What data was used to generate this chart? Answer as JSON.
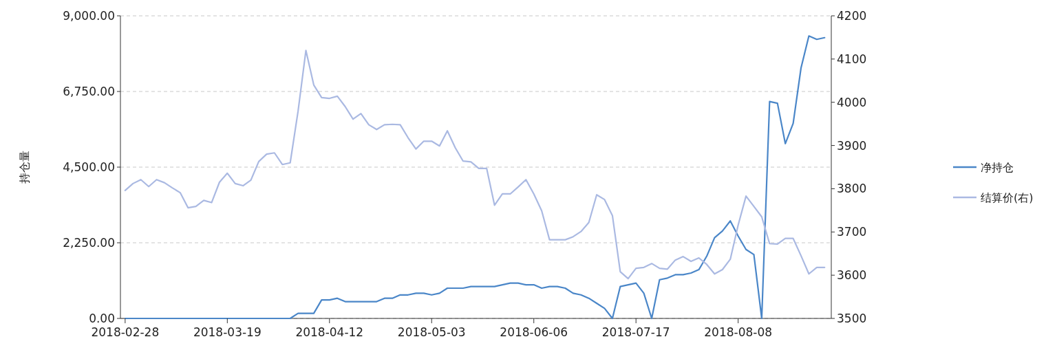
{
  "chart_data": {
    "type": "line",
    "ylabel": "持仓量",
    "categories": [
      "2018-02-28",
      null,
      null,
      null,
      null,
      null,
      null,
      null,
      null,
      null,
      null,
      null,
      null,
      "2018-03-19",
      null,
      null,
      null,
      null,
      null,
      null,
      null,
      null,
      null,
      null,
      null,
      null,
      "2018-04-12",
      null,
      null,
      null,
      null,
      null,
      null,
      null,
      null,
      null,
      null,
      null,
      null,
      "2018-05-03",
      null,
      null,
      null,
      null,
      null,
      null,
      null,
      null,
      null,
      null,
      null,
      null,
      "2018-06-06",
      null,
      null,
      null,
      null,
      null,
      null,
      null,
      null,
      null,
      null,
      null,
      null,
      "2018-07-17",
      null,
      null,
      null,
      null,
      null,
      null,
      null,
      null,
      null,
      null,
      null,
      null,
      "2018-08-08",
      null,
      null,
      null,
      null,
      null,
      null,
      null,
      null,
      null,
      null,
      null
    ],
    "series": [
      {
        "name": "净持仓",
        "color": "#4a86c8",
        "values": [
          0,
          0,
          0,
          0,
          0,
          0,
          0,
          0,
          0,
          0,
          0,
          0,
          0,
          0,
          0,
          0,
          0,
          0,
          0,
          0,
          0,
          0,
          150,
          150,
          150,
          550,
          550,
          600,
          500,
          500,
          500,
          500,
          500,
          600,
          600,
          700,
          700,
          750,
          750,
          700,
          750,
          900,
          900,
          900,
          950,
          950,
          950,
          950,
          1000,
          1050,
          1050,
          1000,
          1000,
          900,
          950,
          950,
          900,
          750,
          700,
          600,
          450,
          300,
          0,
          950,
          1000,
          1050,
          750,
          0,
          1150,
          1200,
          1300,
          1300,
          1350,
          1450,
          1850,
          2400,
          2600,
          2900,
          2450,
          2050,
          1900,
          0,
          6450,
          6400,
          5200,
          5800,
          7450,
          8400,
          8300,
          8350
        ]
      },
      {
        "name": "结算价(右)",
        "color": "#aab9e2",
        "axis": "y2",
        "values": [
          3796,
          3812,
          3821,
          3805,
          3821,
          3814,
          3802,
          3791,
          3756,
          3759,
          3773,
          3768,
          3815,
          3836,
          3812,
          3807,
          3820,
          3863,
          3880,
          3883,
          3856,
          3860,
          3979,
          4120,
          4040,
          4011,
          4009,
          4014,
          3990,
          3961,
          3974,
          3948,
          3937,
          3948,
          3949,
          3948,
          3918,
          3892,
          3910,
          3910,
          3899,
          3934,
          3895,
          3864,
          3862,
          3847,
          3847,
          3762,
          3788,
          3788,
          3804,
          3821,
          3788,
          3749,
          3682,
          3682,
          3682,
          3689,
          3701,
          3722,
          3786,
          3775,
          3738,
          3608,
          3592,
          3616,
          3618,
          3627,
          3616,
          3614,
          3635,
          3643,
          3632,
          3640,
          3625,
          3603,
          3613,
          3637,
          3716,
          3783,
          3759,
          3735,
          3673,
          3672,
          3685,
          3685,
          3645,
          3603,
          3618,
          3618
        ]
      }
    ],
    "ylim": [
      0,
      9000
    ],
    "yticks": [
      {
        "value": 0,
        "label": "0.00"
      },
      {
        "value": 2250,
        "label": "2,250.00"
      },
      {
        "value": 4500,
        "label": "4,500.00"
      },
      {
        "value": 6750,
        "label": "6,750.00"
      },
      {
        "value": 9000,
        "label": "9,000.00"
      }
    ],
    "y2lim": [
      3500,
      4200
    ],
    "y2ticks": [
      3500,
      3600,
      3700,
      3800,
      3900,
      4000,
      4100,
      4200
    ],
    "grid": "y",
    "legend": "right",
    "marker": "none",
    "line_style": "solid"
  }
}
